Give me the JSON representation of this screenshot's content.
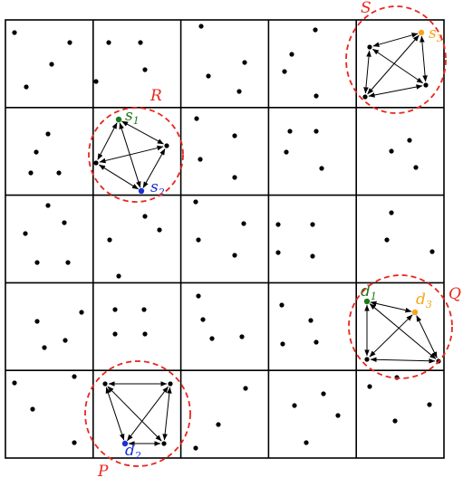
{
  "colors": {
    "grid": "#000000",
    "point": "#000000",
    "source_1": "#1a7a1a",
    "source_2": "#1a2fd6",
    "source_3": "#f5a51d",
    "region": "#e8261e"
  },
  "regions": [
    {
      "id": "S",
      "label": "S"
    },
    {
      "id": "R",
      "label": "R"
    },
    {
      "id": "Q",
      "label": "Q"
    },
    {
      "id": "P",
      "label": "P"
    }
  ],
  "nodes": [
    {
      "id": "s1",
      "label": "s",
      "sub": "1",
      "color_key": "source_1"
    },
    {
      "id": "s2",
      "label": "s",
      "sub": "2",
      "color_key": "source_2"
    },
    {
      "id": "s3",
      "label": "s",
      "sub": "3",
      "color_key": "source_3"
    },
    {
      "id": "d1",
      "label": "d",
      "sub": "1",
      "color_key": "source_1"
    },
    {
      "id": "d2",
      "label": "d",
      "sub": "2",
      "color_key": "source_2"
    },
    {
      "id": "d3",
      "label": "d",
      "sub": "3",
      "color_key": "source_3"
    }
  ]
}
